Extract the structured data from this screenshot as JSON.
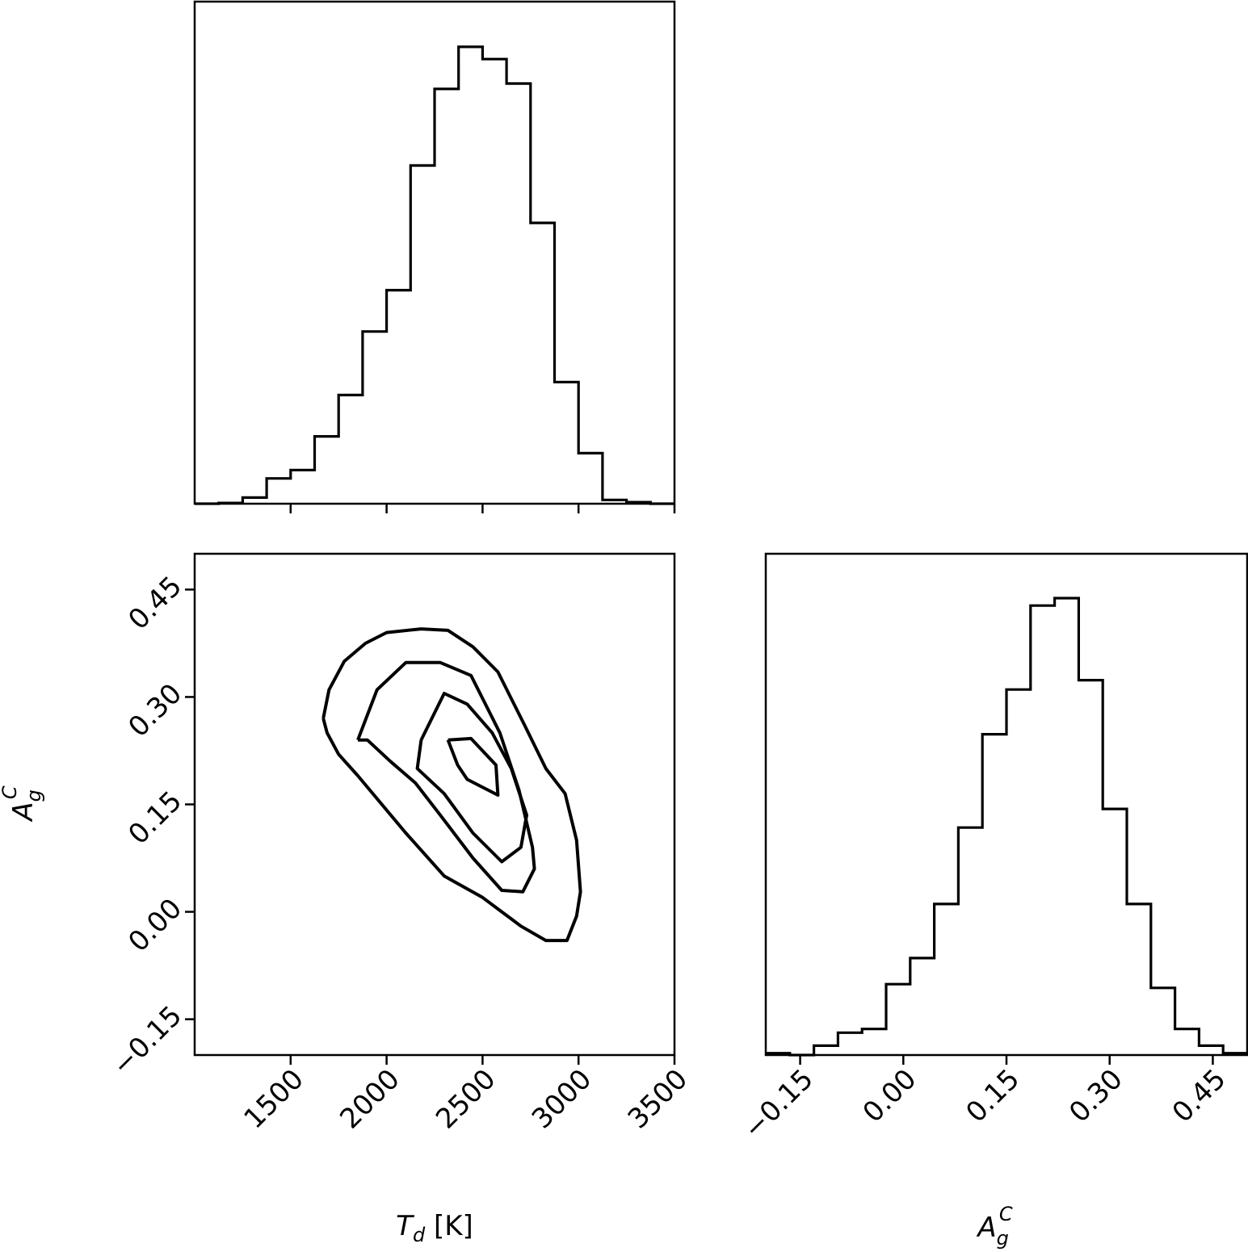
{
  "chart_data": [
    {
      "panel": "top-left",
      "type": "histogram",
      "xlim": [
        1000,
        3500
      ],
      "xticks": [
        1500,
        2000,
        2500,
        3000,
        3500
      ],
      "y_axis": "hidden",
      "bin_edges": [
        1000,
        1125,
        1250,
        1375,
        1500,
        1625,
        1750,
        1875,
        2000,
        2125,
        2250,
        2375,
        2500,
        2625,
        2750,
        2875,
        3000,
        3125,
        3250,
        3375,
        3500
      ],
      "counts": [
        0,
        1,
        8,
        33,
        44,
        88,
        142,
        225,
        279,
        442,
        542,
        597,
        581,
        549,
        367,
        159,
        66,
        5,
        2,
        0
      ]
    },
    {
      "panel": "bottom-left",
      "type": "contour",
      "xlabel": "T_d [K]",
      "ylabel": "A_g^C",
      "xlim": [
        1000,
        3500
      ],
      "ylim": [
        -0.2,
        0.5
      ],
      "xticks": [
        "1500",
        "2000",
        "2500",
        "3000",
        "3500"
      ],
      "yticks": [
        "−0.15",
        "0.00",
        "0.15",
        "0.30",
        "0.45"
      ],
      "levels": [
        [
          [
            2320,
            0.24
          ],
          [
            2440,
            0.242
          ],
          [
            2570,
            0.205
          ],
          [
            2580,
            0.163
          ],
          [
            2420,
            0.185
          ],
          [
            2370,
            0.205
          ],
          [
            2320,
            0.24
          ]
        ],
        [
          [
            2180,
            0.24
          ],
          [
            2300,
            0.305
          ],
          [
            2420,
            0.29
          ],
          [
            2550,
            0.25
          ],
          [
            2650,
            0.2
          ],
          [
            2730,
            0.135
          ],
          [
            2700,
            0.09
          ],
          [
            2600,
            0.07
          ],
          [
            2450,
            0.11
          ],
          [
            2300,
            0.165
          ],
          [
            2160,
            0.2
          ],
          [
            2180,
            0.24
          ]
        ],
        [
          [
            1850,
            0.24
          ],
          [
            1950,
            0.31
          ],
          [
            2100,
            0.348
          ],
          [
            2280,
            0.348
          ],
          [
            2440,
            0.33
          ],
          [
            2590,
            0.25
          ],
          [
            2690,
            0.17
          ],
          [
            2760,
            0.09
          ],
          [
            2770,
            0.06
          ],
          [
            2710,
            0.028
          ],
          [
            2600,
            0.03
          ],
          [
            2450,
            0.075
          ],
          [
            2280,
            0.135
          ],
          [
            2150,
            0.18
          ],
          [
            2020,
            0.21
          ],
          [
            1900,
            0.24
          ],
          [
            1850,
            0.24
          ]
        ],
        [
          [
            1670,
            0.27
          ],
          [
            1700,
            0.31
          ],
          [
            1780,
            0.35
          ],
          [
            1890,
            0.375
          ],
          [
            2000,
            0.39
          ],
          [
            2180,
            0.395
          ],
          [
            2320,
            0.393
          ],
          [
            2450,
            0.37
          ],
          [
            2580,
            0.335
          ],
          [
            2720,
            0.26
          ],
          [
            2830,
            0.2
          ],
          [
            2930,
            0.165
          ],
          [
            2990,
            0.1
          ],
          [
            3010,
            0.028
          ],
          [
            2990,
            -0.006
          ],
          [
            2940,
            -0.04
          ],
          [
            2830,
            -0.04
          ],
          [
            2700,
            -0.02
          ],
          [
            2600,
            0.0
          ],
          [
            2500,
            0.02
          ],
          [
            2300,
            0.05
          ],
          [
            2100,
            0.11
          ],
          [
            1850,
            0.19
          ],
          [
            1750,
            0.22
          ],
          [
            1690,
            0.25
          ],
          [
            1670,
            0.27
          ]
        ]
      ]
    },
    {
      "panel": "bottom-right",
      "type": "histogram",
      "xlabel": "A_g^C",
      "xlim": [
        -0.2,
        0.5
      ],
      "xticks": [
        "−0.15",
        "0.00",
        "0.15",
        "0.30",
        "0.45"
      ],
      "y_axis": "hidden",
      "bin_edges": [
        -0.2,
        -0.165,
        -0.13,
        -0.095,
        -0.06,
        -0.025,
        0.01,
        0.045,
        0.08,
        0.115,
        0.15,
        0.185,
        0.22,
        0.255,
        0.29,
        0.325,
        0.36,
        0.395,
        0.43,
        0.465,
        0.5
      ],
      "counts": [
        1,
        0,
        5,
        12,
        14,
        38,
        52,
        81,
        122,
        172,
        196,
        241,
        245,
        201,
        132,
        81,
        36,
        14,
        5,
        1
      ]
    }
  ],
  "labels": {
    "x_td_main": "T",
    "x_td_sub": "d",
    "x_td_unit": " [K]",
    "ag_main": "A",
    "ag_sub": "g",
    "ag_sup": "C"
  }
}
